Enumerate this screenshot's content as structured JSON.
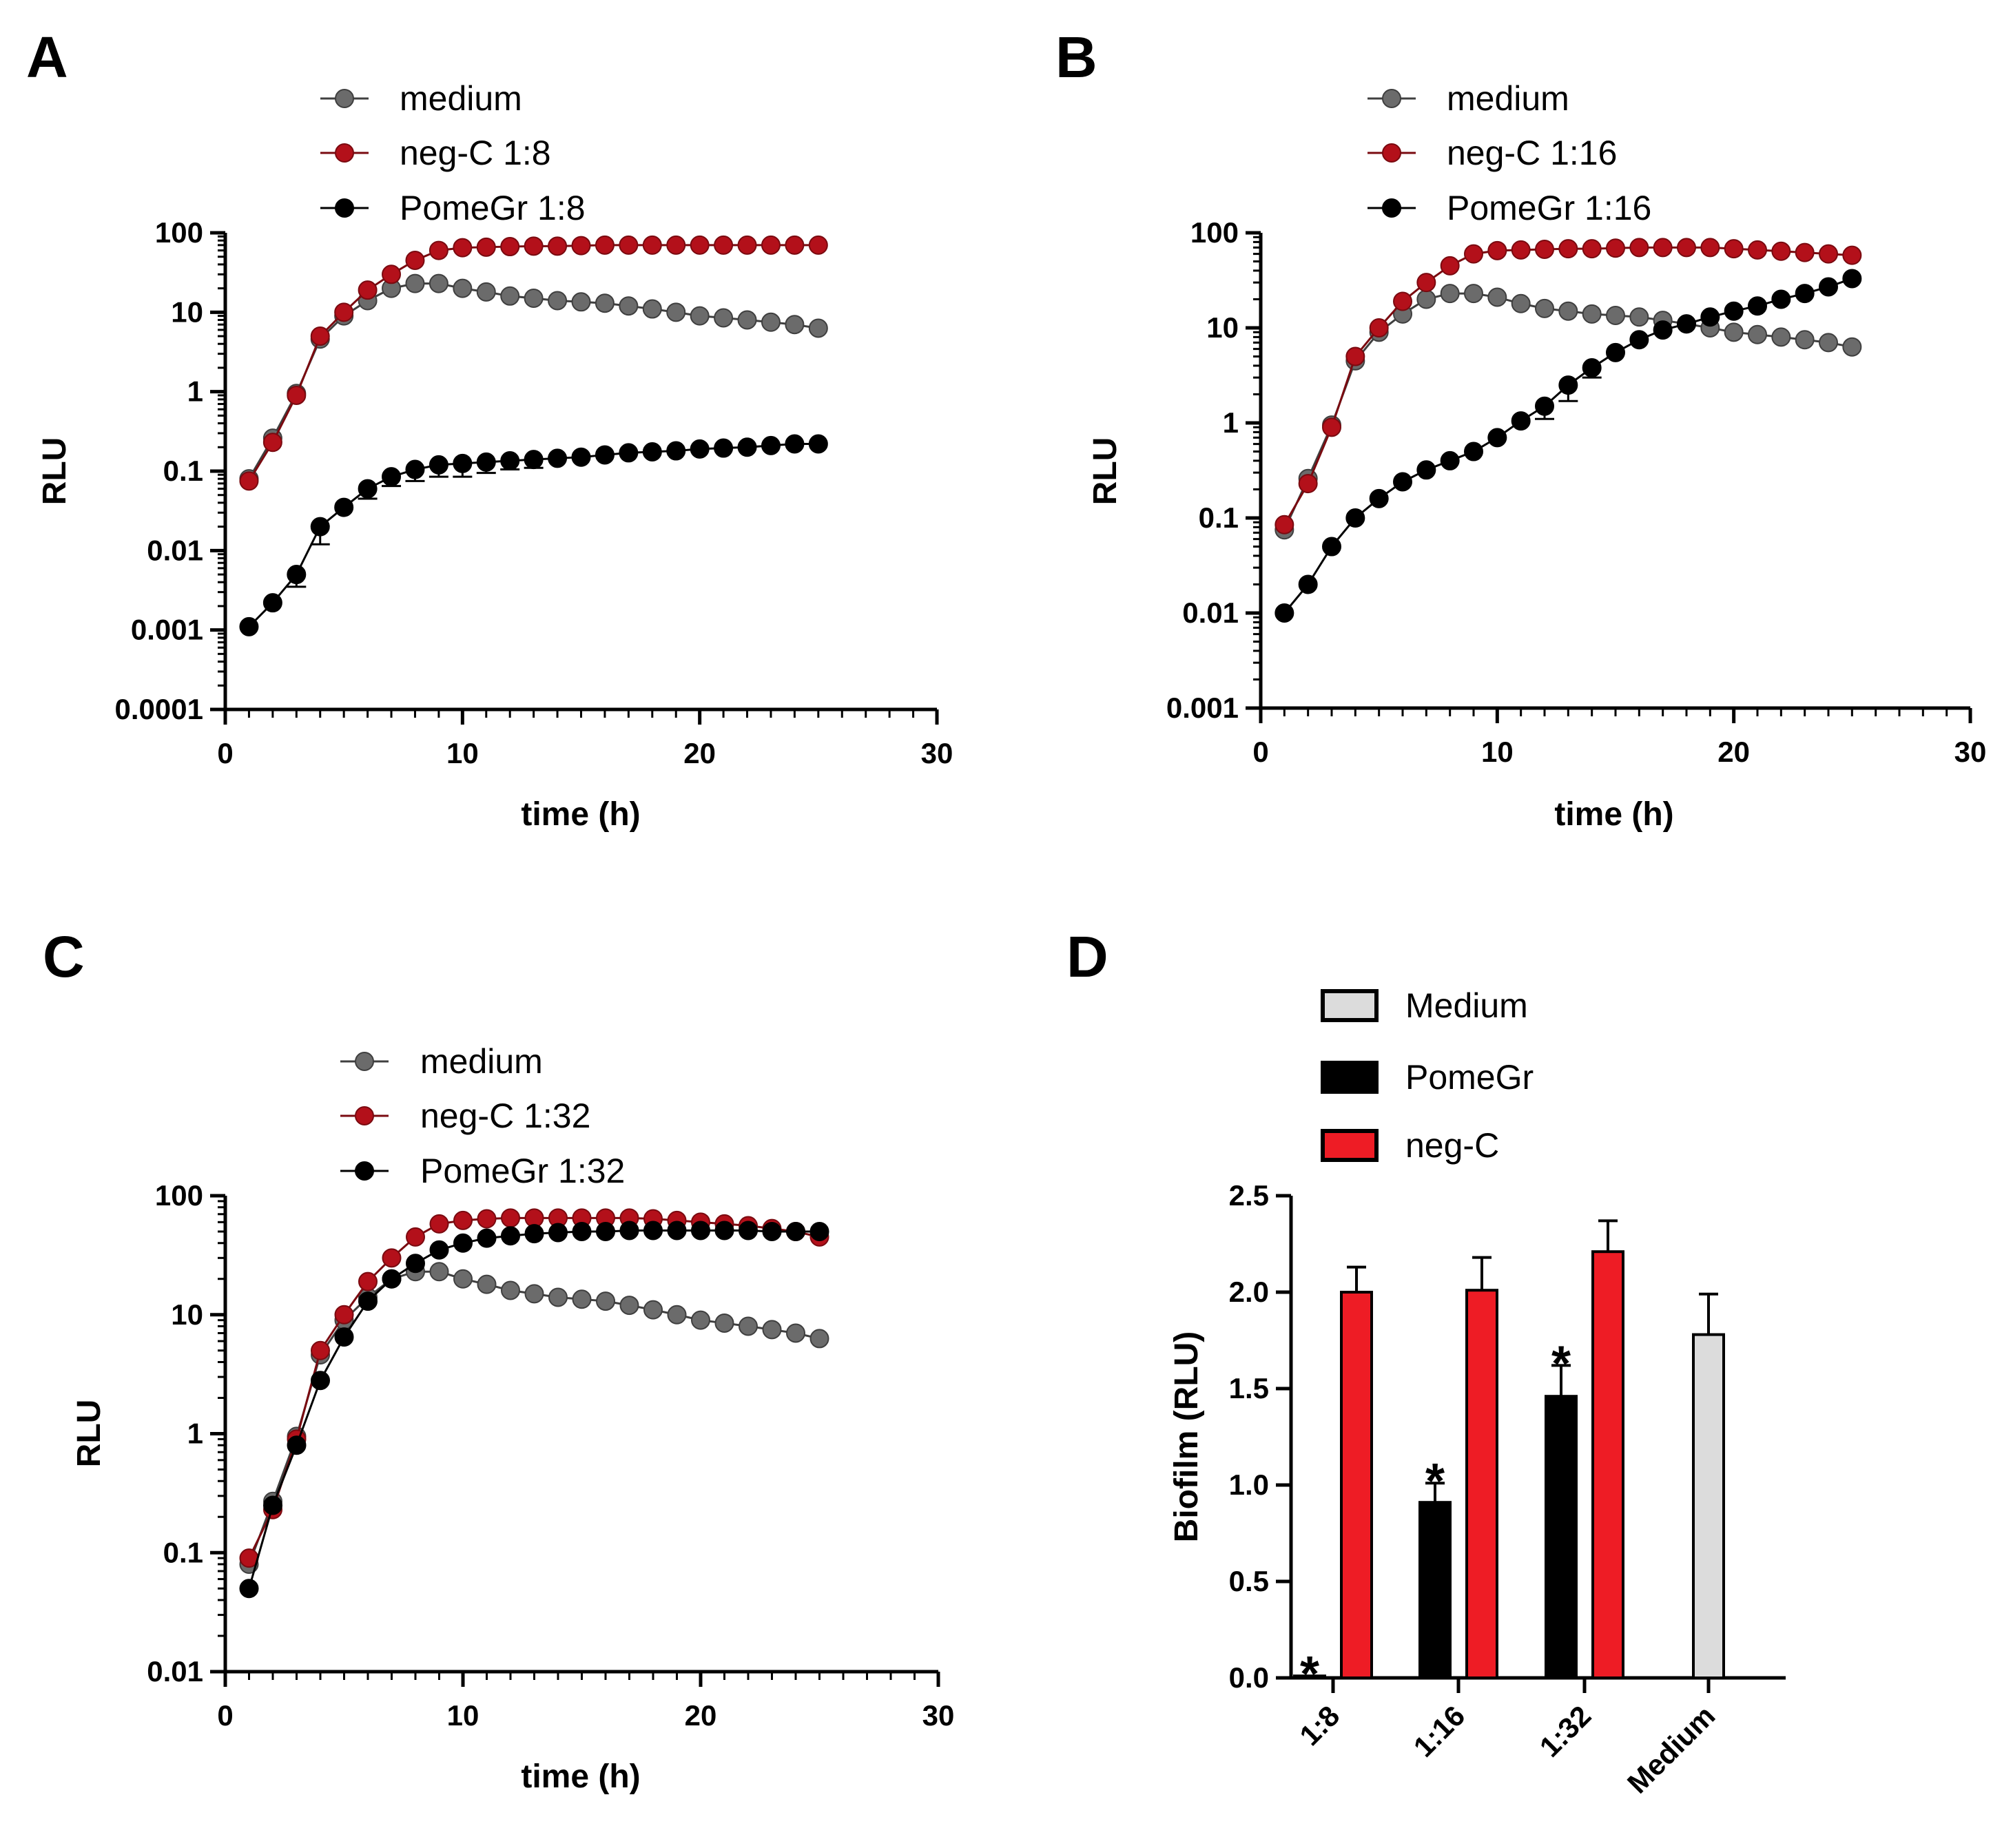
{
  "colors": {
    "medium": "#6b6b6b",
    "medium_edge": "#3f3f3f",
    "neg": "#b3101a",
    "pome": "#000000",
    "bar_neg": "#ee1c25",
    "bar_medium": "#dcdcdc",
    "axis": "#000000"
  },
  "chart_data": [
    {
      "panel": "A",
      "type": "line",
      "scale": "log",
      "xlabel": "time (h)",
      "ylabel": "RLU",
      "xlim": [
        0,
        30
      ],
      "ylim": [
        0.0001,
        100
      ],
      "xticks": [
        "0",
        "10",
        "20",
        "30"
      ],
      "yticks": [
        "0.0001",
        "0.001",
        "0.01",
        "0.1",
        "1",
        "10",
        "100"
      ],
      "legend_position": "top",
      "x": [
        1,
        2,
        3,
        4,
        5,
        6,
        7,
        8,
        9,
        10,
        11,
        12,
        13,
        14,
        15,
        16,
        17,
        18,
        19,
        20,
        21,
        22,
        23,
        24,
        25
      ],
      "series": [
        {
          "name": "medium",
          "color_key": "medium",
          "values": [
            0.08,
            0.26,
            0.95,
            4.6,
            9,
            14,
            20,
            23,
            23,
            20,
            18,
            16,
            15,
            14,
            13.5,
            13,
            12,
            11,
            10,
            9,
            8.5,
            8,
            7.5,
            7,
            6.3
          ],
          "err": []
        },
        {
          "name": "neg-C 1:8",
          "color_key": "neg",
          "values": [
            0.075,
            0.23,
            0.9,
            5,
            10,
            19,
            30,
            45,
            60,
            65,
            66,
            67,
            68,
            68,
            69,
            70,
            70,
            70,
            70,
            70,
            70,
            70,
            70,
            70,
            70
          ],
          "err": []
        },
        {
          "name": "PomeGr 1:8",
          "color_key": "pome",
          "values": [
            0.0011,
            0.0022,
            0.005,
            0.02,
            0.035,
            0.06,
            0.085,
            0.105,
            0.12,
            0.125,
            0.13,
            0.135,
            0.14,
            0.145,
            0.15,
            0.16,
            0.17,
            0.175,
            0.18,
            0.19,
            0.195,
            0.2,
            0.21,
            0.22,
            0.22
          ],
          "err": [
            0,
            0,
            0.0015,
            0.008,
            0,
            0.015,
            0.02,
            0.03,
            0.035,
            0.04,
            0.035,
            0.03,
            0.03,
            0,
            0,
            0,
            0,
            0,
            0,
            0,
            0,
            0,
            0,
            0,
            0
          ]
        }
      ]
    },
    {
      "panel": "B",
      "type": "line",
      "scale": "log",
      "xlabel": "time (h)",
      "ylabel": "RLU",
      "xlim": [
        0,
        30
      ],
      "ylim": [
        0.001,
        100
      ],
      "xticks": [
        "0",
        "10",
        "20",
        "30"
      ],
      "yticks": [
        "0.001",
        "0.01",
        "0.1",
        "1",
        "10",
        "100"
      ],
      "legend_position": "top",
      "x": [
        1,
        2,
        3,
        4,
        5,
        6,
        7,
        8,
        9,
        10,
        11,
        12,
        13,
        14,
        15,
        16,
        17,
        18,
        19,
        20,
        21,
        22,
        23,
        24,
        25
      ],
      "series": [
        {
          "name": "medium",
          "color_key": "medium",
          "values": [
            0.075,
            0.26,
            0.95,
            4.5,
            9,
            14,
            20,
            23,
            23,
            21,
            18,
            16,
            15,
            14,
            13.5,
            13,
            12,
            11,
            10,
            9,
            8.5,
            8,
            7.5,
            7,
            6.3
          ],
          "err": []
        },
        {
          "name": "neg-C 1:16",
          "color_key": "neg",
          "values": [
            0.085,
            0.23,
            0.9,
            5,
            10,
            19,
            30,
            45,
            60,
            65,
            66,
            67,
            68,
            68,
            69,
            70,
            70,
            70,
            70,
            68,
            66,
            64,
            62,
            60,
            58
          ],
          "err": []
        },
        {
          "name": "PomeGr 1:16",
          "color_key": "pome",
          "values": [
            0.01,
            0.02,
            0.05,
            0.1,
            0.16,
            0.24,
            0.32,
            0.4,
            0.5,
            0.7,
            1.05,
            1.5,
            2.5,
            3.8,
            5.5,
            7.5,
            9.5,
            11,
            13,
            15,
            17,
            20,
            23,
            27,
            33
          ],
          "err": [
            0,
            0,
            0,
            0,
            0,
            0,
            0,
            0,
            0,
            0,
            0,
            0.4,
            0.8,
            0.8,
            0,
            0,
            0,
            0,
            0,
            0,
            0,
            0,
            0,
            0,
            0
          ]
        }
      ]
    },
    {
      "panel": "C",
      "type": "line",
      "scale": "log",
      "xlabel": "time (h)",
      "ylabel": "RLU",
      "xlim": [
        0,
        30
      ],
      "ylim": [
        0.01,
        100
      ],
      "xticks": [
        "0",
        "10",
        "20",
        "30"
      ],
      "yticks": [
        "0.01",
        "0.1",
        "1",
        "10",
        "100"
      ],
      "legend_position": "top",
      "x": [
        1,
        2,
        3,
        4,
        5,
        6,
        7,
        8,
        9,
        10,
        11,
        12,
        13,
        14,
        15,
        16,
        17,
        18,
        19,
        20,
        21,
        22,
        23,
        24,
        25
      ],
      "series": [
        {
          "name": "medium",
          "color_key": "medium",
          "values": [
            0.08,
            0.27,
            0.95,
            4.6,
            9,
            14,
            20,
            23,
            23,
            20,
            18,
            16,
            15,
            14,
            13.5,
            13,
            12,
            11,
            10,
            9,
            8.5,
            8,
            7.5,
            7,
            6.3
          ],
          "err": []
        },
        {
          "name": "neg-C 1:32",
          "color_key": "neg",
          "values": [
            0.09,
            0.23,
            0.9,
            5,
            10,
            19,
            30,
            45,
            58,
            62,
            64,
            65,
            65,
            65,
            65,
            65,
            65,
            64,
            62,
            60,
            58,
            56,
            53,
            50,
            45
          ],
          "err": []
        },
        {
          "name": "PomeGr 1:32",
          "color_key": "pome",
          "values": [
            0.05,
            0.25,
            0.8,
            2.8,
            6.5,
            13,
            20,
            27,
            35,
            40,
            44,
            46,
            48,
            49,
            50,
            50,
            51,
            51,
            51,
            51,
            51,
            51,
            50,
            50,
            50
          ],
          "err": []
        }
      ]
    },
    {
      "panel": "D",
      "type": "bar",
      "xlabel": "",
      "ylabel": "Biofilm (RLU)",
      "ylim": [
        0,
        2.5
      ],
      "yticks": [
        "0.0",
        "0.5",
        "1.0",
        "1.5",
        "2.0",
        "2.5"
      ],
      "categories": [
        "1:8",
        "1:16",
        "1:32",
        "Medium"
      ],
      "legend_position": "top",
      "legend": [
        {
          "name": "Medium",
          "color_key": "bar_medium"
        },
        {
          "name": "PomeGr",
          "color_key": "pome"
        },
        {
          "name": "neg-C",
          "color_key": "bar_neg"
        }
      ],
      "bars": [
        {
          "group": 0,
          "series": "PomeGr",
          "color_key": "pome",
          "value": 0.01,
          "err": 0,
          "star": "*"
        },
        {
          "group": 0,
          "series": "neg-C",
          "color_key": "bar_neg",
          "value": 2.0,
          "err": 0.13,
          "star": ""
        },
        {
          "group": 1,
          "series": "PomeGr",
          "color_key": "pome",
          "value": 0.91,
          "err": 0.1,
          "star": "*"
        },
        {
          "group": 1,
          "series": "neg-C",
          "color_key": "bar_neg",
          "value": 2.01,
          "err": 0.17,
          "star": ""
        },
        {
          "group": 2,
          "series": "PomeGr",
          "color_key": "pome",
          "value": 1.46,
          "err": 0.16,
          "star": "*"
        },
        {
          "group": 2,
          "series": "neg-C",
          "color_key": "bar_neg",
          "value": 2.21,
          "err": 0.16,
          "star": ""
        },
        {
          "group": 3,
          "series": "Medium",
          "color_key": "bar_medium",
          "value": 1.78,
          "err": 0.21,
          "star": ""
        }
      ]
    }
  ]
}
